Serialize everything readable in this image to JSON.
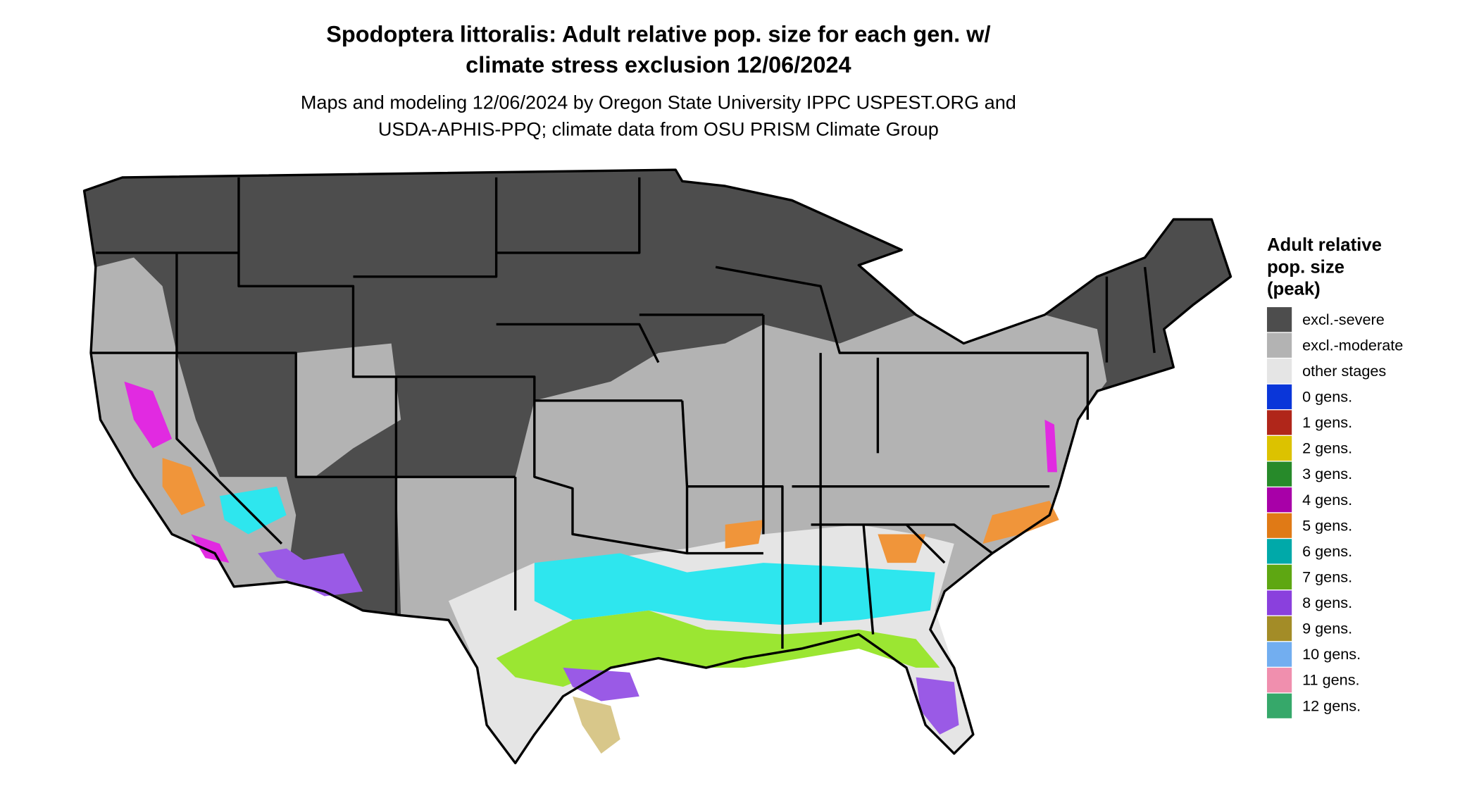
{
  "title_lines": [
    "Spodoptera littoralis: Adult relative pop. size for each gen. w/",
    "climate stress exclusion 12/06/2024"
  ],
  "subtitle_lines": [
    "Maps and modeling 12/06/2024 by Oregon State University IPPC USPEST.ORG and",
    "USDA-APHIS-PPQ; climate data from OSU PRISM Climate Group"
  ],
  "legend": {
    "title_lines": [
      "Adult relative",
      "pop. size",
      "(peak)"
    ],
    "items": [
      {
        "label": "excl.-severe",
        "color": "#4d4d4d"
      },
      {
        "label": "excl.-moderate",
        "color": "#b3b3b3"
      },
      {
        "label": "other stages",
        "color": "#e5e5e5"
      },
      {
        "label": "0 gens.",
        "color": "#0a36d9"
      },
      {
        "label": "1 gens.",
        "color": "#b0261a"
      },
      {
        "label": "2 gens.",
        "color": "#dcc200"
      },
      {
        "label": "3 gens.",
        "color": "#278a2a"
      },
      {
        "label": "4 gens.",
        "color": "#a800a8"
      },
      {
        "label": "5 gens.",
        "color": "#e07a16"
      },
      {
        "label": "6 gens.",
        "color": "#00a9a9"
      },
      {
        "label": "7 gens.",
        "color": "#5ea712"
      },
      {
        "label": "8 gens.",
        "color": "#8a40dd"
      },
      {
        "label": "9 gens.",
        "color": "#a38c27"
      },
      {
        "label": "10 gens.",
        "color": "#72aef0"
      },
      {
        "label": "11 gens.",
        "color": "#f08fae"
      },
      {
        "label": "12 gens.",
        "color": "#36a86a"
      }
    ]
  }
}
